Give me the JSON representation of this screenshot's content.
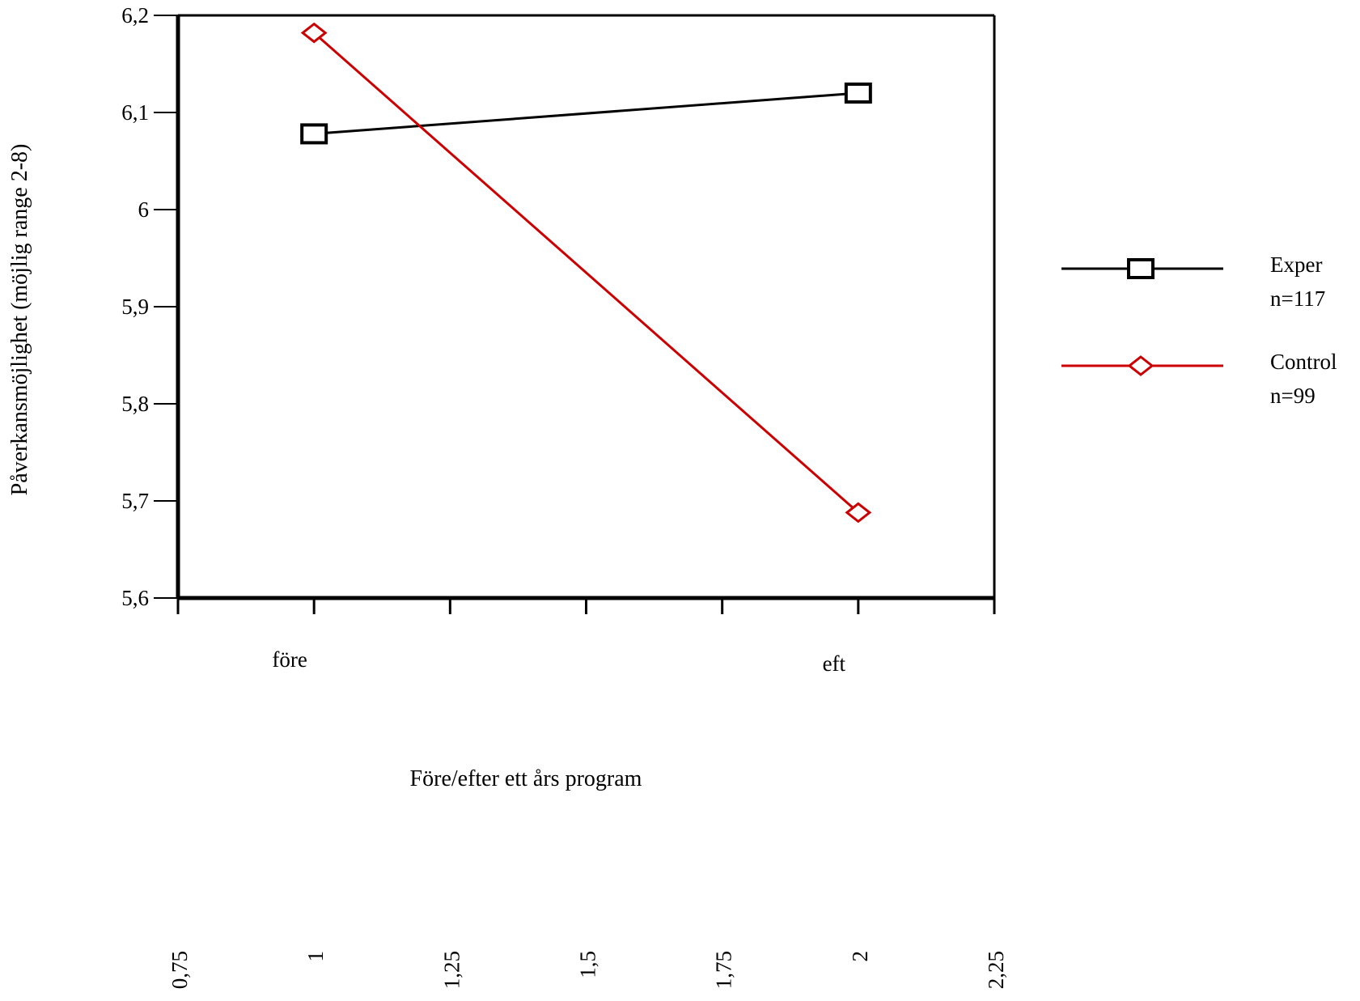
{
  "chart_data": {
    "type": "line",
    "title": "",
    "xlabel": "Före/efter ett års program",
    "ylabel": "Påverkansmöjlighet (möjlig range 2-8)",
    "x": [
      1,
      2
    ],
    "x_category_labels": [
      "före",
      "eft"
    ],
    "xlim": [
      0.75,
      2.25
    ],
    "x_ticks": [
      "0,75",
      "1",
      "1,25",
      "1,5",
      "1,75",
      "2",
      "2,25"
    ],
    "ylim": [
      5.6,
      6.2
    ],
    "y_ticks": [
      "5,6",
      "5,7",
      "5,8",
      "5,9",
      "6",
      "6,1",
      "6,2"
    ],
    "grid": false,
    "legend_position": "right",
    "series": [
      {
        "name": "Exper",
        "note": "n=117",
        "marker": "square",
        "color": "#000000",
        "values": [
          6.078,
          6.12
        ]
      },
      {
        "name": "Control",
        "note": "n=99",
        "marker": "diamond",
        "color": "#cc0000",
        "values": [
          6.182,
          5.688
        ]
      }
    ]
  }
}
